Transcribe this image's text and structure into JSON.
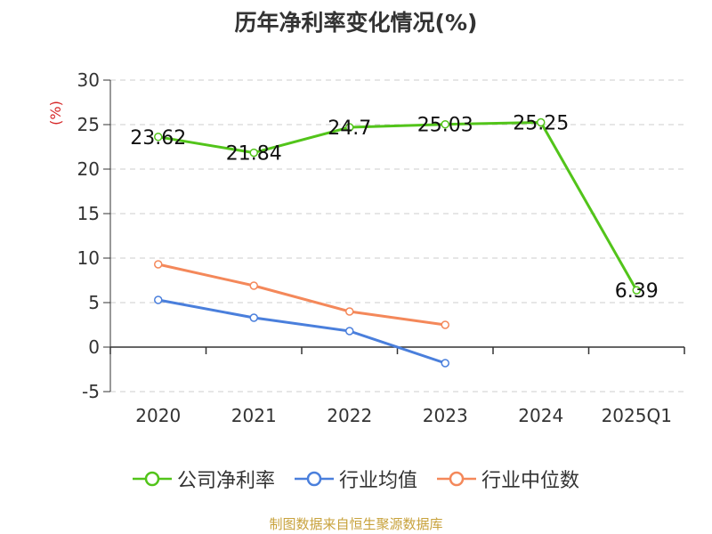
{
  "chart_data": {
    "type": "line",
    "title": "历年净利率变化情况(%)",
    "ylabel": "(%)",
    "xlabel": "",
    "categories": [
      "2020",
      "2021",
      "2022",
      "2023",
      "2024",
      "2025Q1"
    ],
    "yticks": [
      30,
      25,
      20,
      15,
      10,
      5,
      0,
      -5
    ],
    "ylim": [
      -5,
      30
    ],
    "grid": true,
    "legend_position": "bottom",
    "series": [
      {
        "name": "公司净利率",
        "color": "#52c41a",
        "values": [
          23.62,
          21.84,
          24.7,
          25.03,
          25.25,
          6.39
        ],
        "labels": [
          "23.62",
          "21.84",
          "24.7",
          "25.03",
          "25.25",
          "6.39"
        ]
      },
      {
        "name": "行业均值",
        "color": "#4a7fdc",
        "values": [
          5.3,
          3.3,
          1.8,
          -1.8,
          null,
          null
        ]
      },
      {
        "name": "行业中位数",
        "color": "#f4885a",
        "values": [
          9.3,
          6.9,
          4.0,
          2.5,
          null,
          null
        ]
      }
    ]
  },
  "footer": {
    "source": "制图数据来自恒生聚源数据库"
  }
}
